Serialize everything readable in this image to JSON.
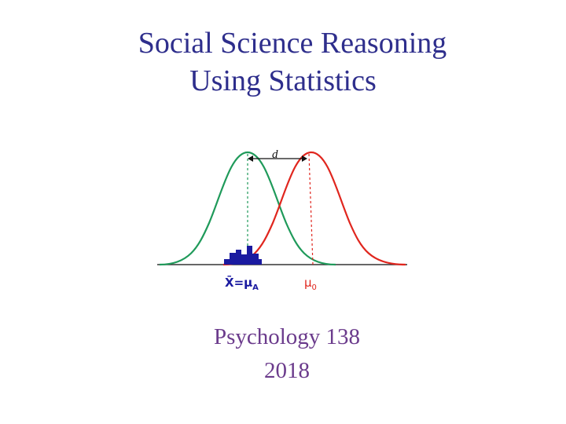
{
  "slide": {
    "title_line_1": "Social Science Reasoning",
    "title_line_2": "Using Statistics",
    "course": "Psychology 138",
    "year": "2018"
  },
  "diagram": {
    "effect_label": "d",
    "sample_label": "X̄=μ",
    "sample_subscript": "A",
    "null_label": "μ",
    "null_subscript": "0",
    "colors": {
      "alternative_curve": "#1f9a5a",
      "null_curve": "#e0261e",
      "histogram": "#1a1aa0",
      "axis": "#333333",
      "text": "#111111"
    }
  }
}
